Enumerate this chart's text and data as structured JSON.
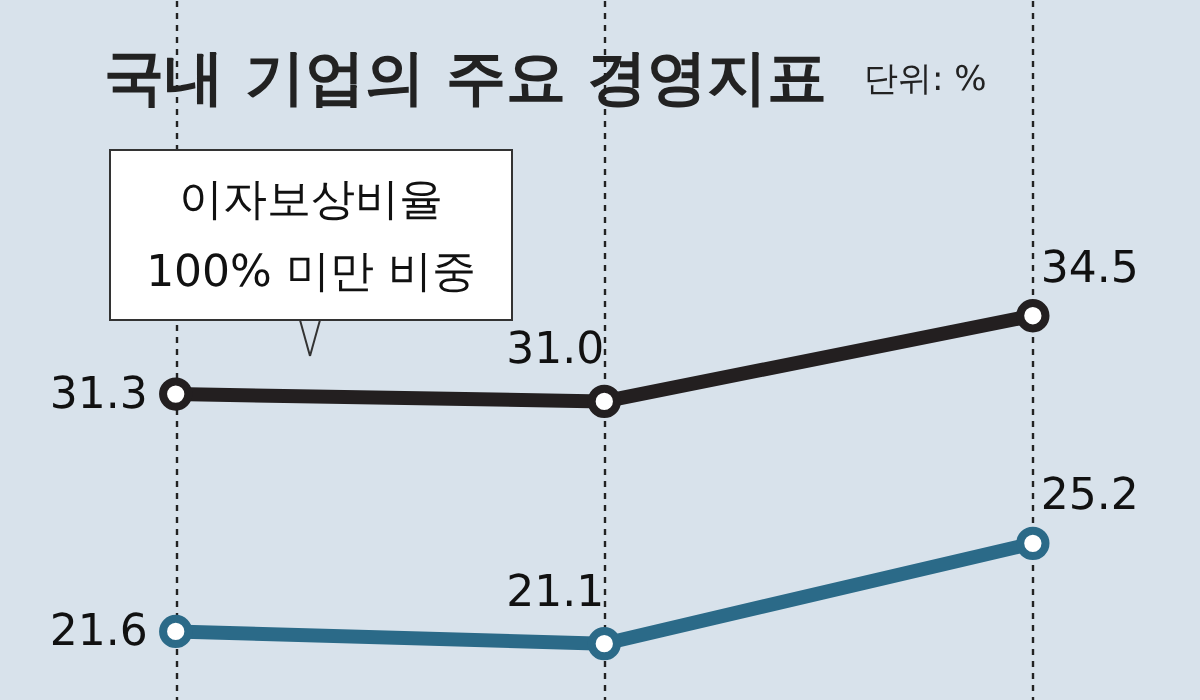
{
  "chart_data": {
    "type": "line",
    "title": "국내 기업의 주요 경영지표",
    "subtitle": "단위: %",
    "categories": [
      null,
      null,
      null
    ],
    "series": [
      {
        "name": "이자보상비율 100% 미만 비중",
        "color": "#231f20",
        "values": [
          31.3,
          31.0,
          34.5
        ],
        "value_labels": [
          "31.3",
          "31.0",
          "34.5"
        ]
      },
      {
        "color": "#2b6a88",
        "values": [
          21.6,
          21.1,
          25.2
        ],
        "value_labels": [
          "21.6",
          "21.1",
          "25.2"
        ]
      }
    ],
    "ylim": [
      18.8,
      47.4
    ],
    "grid": "x",
    "tick_labels": false,
    "marker": "circle",
    "line_style": "solid"
  }
}
